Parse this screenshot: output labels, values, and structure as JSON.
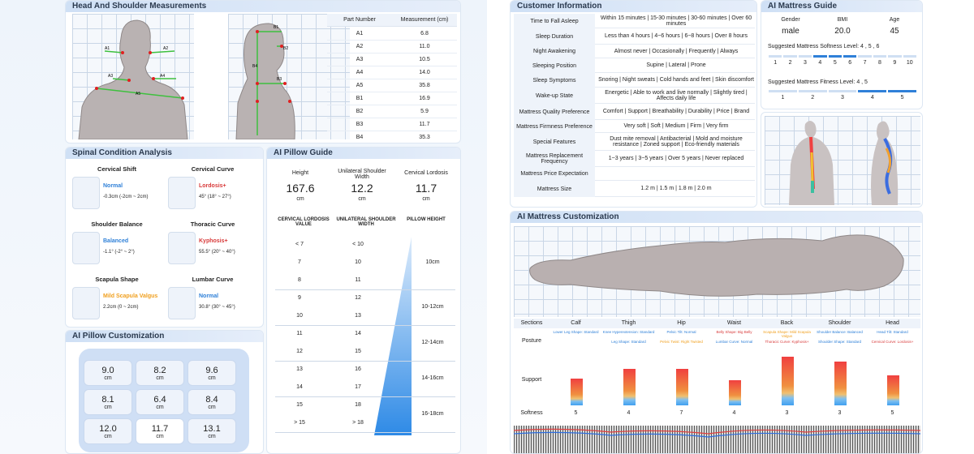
{
  "head_shoulder": {
    "title": "Head And Shoulder Measurements",
    "col_part": "Part Number",
    "col_meas": "Measurement (cm)",
    "rows": [
      [
        "A1",
        "6.8"
      ],
      [
        "A2",
        "11.0"
      ],
      [
        "A3",
        "10.5"
      ],
      [
        "A4",
        "14.0"
      ],
      [
        "A5",
        "35.8"
      ],
      [
        "B1",
        "16.9"
      ],
      [
        "B2",
        "5.9"
      ],
      [
        "B3",
        "11.7"
      ],
      [
        "B4",
        "35.3"
      ]
    ],
    "labels_front": [
      "A1",
      "A2",
      "A3",
      "A4",
      "A5"
    ],
    "labels_side": [
      "B1",
      "B2",
      "B3",
      "B4"
    ]
  },
  "spinal": {
    "title": "Spinal Condition Analysis",
    "items": [
      {
        "title": "Cervical Shift",
        "status": "Normal",
        "value": "-0.3cm (-2cm ~ 2cm)"
      },
      {
        "title": "Cervical Curve",
        "status": "Lordosis+",
        "value": "45° (18° ~ 27°)"
      },
      {
        "title": "Shoulder Balance",
        "status": "Balanced",
        "value": "-1.1° (-2° ~ 2°)"
      },
      {
        "title": "Thoracic Curve",
        "status": "Kyphosis+",
        "value": "55.5° (20° ~ 40°)"
      },
      {
        "title": "Scapula Shape",
        "status": "Mild Scapula Valgus",
        "value": "2.2cm (0 ~ 2cm)"
      },
      {
        "title": "Lumbar Curve",
        "status": "Normal",
        "value": "30.8° (30° ~ 45°)"
      }
    ]
  },
  "pillow_guide": {
    "title": "AI Pillow Guide",
    "height_label": "Height",
    "height": "167.6",
    "width_label": "Unilateral Shoulder Width",
    "width": "12.2",
    "lordosis_label": "Cervical Lordosis",
    "lordosis": "11.7",
    "unit": "cm",
    "th": [
      "CERVICAL LORDOSIS VALUE",
      "UNILATERAL SHOULDER WIDTH",
      "PILLOW HEIGHT"
    ],
    "groups": [
      {
        "rows": [
          [
            "< 7",
            "< 10"
          ],
          [
            "7",
            "10"
          ],
          [
            "8",
            "11"
          ]
        ],
        "height": "10cm"
      },
      {
        "rows": [
          [
            "9",
            "12"
          ],
          [
            "10",
            "13"
          ]
        ],
        "height": "10-12cm"
      },
      {
        "rows": [
          [
            "11",
            "14"
          ],
          [
            "12",
            "15"
          ]
        ],
        "height": "12-14cm"
      },
      {
        "rows": [
          [
            "13",
            "16"
          ],
          [
            "14",
            "17"
          ]
        ],
        "height": "14-16cm"
      },
      {
        "rows": [
          [
            "15",
            "18"
          ],
          [
            "> 15",
            "> 18"
          ]
        ],
        "height": "16-18cm"
      }
    ]
  },
  "pillow_custom": {
    "title": "AI Pillow Customization",
    "unit": "cm",
    "values": [
      "9.0",
      "8.2",
      "9.6",
      "8.1",
      "6.4",
      "8.4",
      "12.0",
      "11.7",
      "13.1"
    ]
  },
  "customer": {
    "title": "Customer Information",
    "rows": [
      [
        "Time to Fall Asleep",
        "Within 15 minutes | 15-30 minutes | 30-60 minutes | Over 60 minutes"
      ],
      [
        "Sleep Duration",
        "Less than 4 hours | 4~6 hours | 6~8 hours | Over 8 hours"
      ],
      [
        "Night Awakening",
        "Almost never | Occasionally | Frequently | Always"
      ],
      [
        "Sleeping Position",
        "Supine | Lateral | Prone"
      ],
      [
        "Sleep Symptoms",
        "Snoring | Night sweats | Cold hands and feet | Skin discomfort"
      ],
      [
        "Wake-up State",
        "Energetic | Able to work and live normally | Slightly tired | Affects daily life"
      ],
      [
        "Mattress Quality Preference",
        "Comfort | Support | Breathability | Durability | Price | Brand"
      ],
      [
        "Mattress Firmness Preference",
        "Very soft | Soft | Medium | Firm | Very firm"
      ],
      [
        "Special Features",
        "Dust mite removal | Antibacterial | Mold and moisture resistance | Zoned support | Eco-friendly materials"
      ],
      [
        "Mattress Replacement Frequency",
        "1~3 years | 3~5 years | Over 5 years | Never replaced"
      ],
      [
        "Mattress Price Expectation",
        ""
      ],
      [
        "Mattress Size",
        "1.2 m | 1.5 m | 1.8 m | 2.0 m"
      ]
    ]
  },
  "mattress_guide": {
    "title": "AI Mattress Guide",
    "gender_label": "Gender",
    "gender": "male",
    "bmi_label": "BMI",
    "bmi": "20.0",
    "age_label": "Age",
    "age": "45",
    "softness_label": "Suggested Mattress Softness Level:  4 , 5 , 6",
    "softness_ticks": [
      "1",
      "2",
      "3",
      "4",
      "5",
      "6",
      "7",
      "8",
      "9",
      "10"
    ],
    "softness_active": [
      4,
      5,
      6
    ],
    "fitness_label": "Suggested Mattress Fitness Level:  4 , 5",
    "fitness_ticks": [
      "1",
      "2",
      "3",
      "4",
      "5"
    ],
    "fitness_active": [
      4,
      5
    ]
  },
  "mattress_custom": {
    "title": "AI Mattress Customization",
    "sections_label": "Sections",
    "posture_label": "Posture",
    "support_label": "Support",
    "softness_label": "Softness",
    "sections": [
      {
        "name": "Calf",
        "posture": [
          "Lower Leg Shape: Standard"
        ],
        "colors": [
          "blue"
        ],
        "support": 0.55,
        "softness": "5"
      },
      {
        "name": "Thigh",
        "posture": [
          "Knee Hyperextension: Standard",
          "Leg Shape: Standard"
        ],
        "colors": [
          "blue",
          "blue"
        ],
        "support": 0.75,
        "softness": "4"
      },
      {
        "name": "Hip",
        "posture": [
          "Pelvic Tilt: Normal",
          "Pelvic Twist: Right Twisted"
        ],
        "colors": [
          "blue",
          "orange"
        ],
        "support": 0.75,
        "softness": "7"
      },
      {
        "name": "Waist",
        "posture": [
          "Belly Shape: Big Belly",
          "Lumbar Curve: Normal"
        ],
        "colors": [
          "red",
          "blue"
        ],
        "support": 0.52,
        "softness": "4"
      },
      {
        "name": "Back",
        "posture": [
          "Scapula Shape: Mild Scapula Valgus",
          "Thoracic Curve: Kyphosis+"
        ],
        "colors": [
          "orange",
          "red"
        ],
        "support": 1.0,
        "softness": "3"
      },
      {
        "name": "Shoulder",
        "posture": [
          "Shoulder Balance: Balanced",
          "Shoulder Shape: Standard"
        ],
        "colors": [
          "blue",
          "blue"
        ],
        "support": 0.9,
        "softness": "3"
      },
      {
        "name": "Head",
        "posture": [
          "Head Tilt: Standard",
          "Cervical Curve: Lordosis+"
        ],
        "colors": [
          "blue",
          "red"
        ],
        "support": 0.62,
        "softness": "5"
      }
    ]
  }
}
